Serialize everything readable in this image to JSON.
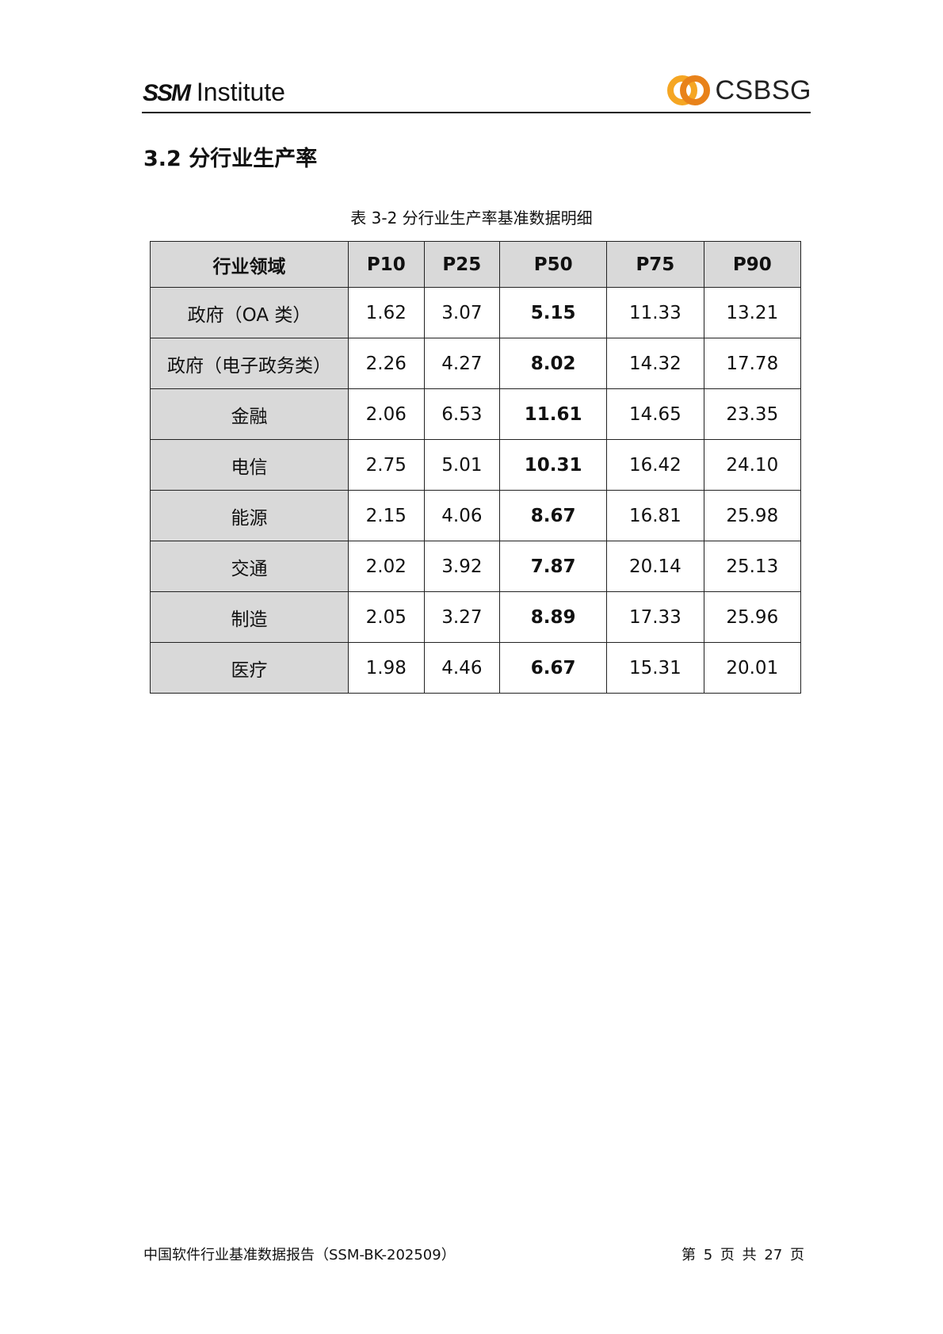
{
  "header": {
    "logo_left_mark": "SSM",
    "logo_left_text": "Institute",
    "logo_right_text": "CSBSG",
    "logo_right_colors": [
      "#f5a623",
      "#e8821a"
    ]
  },
  "section_title": "3.2  分行业生产率",
  "caption": "表 3-2  分行业生产率基准数据明细",
  "table": {
    "columns": [
      "行业领域",
      "P10",
      "P25",
      "P50",
      "P75",
      "P90"
    ],
    "rows": [
      [
        "政府（OA 类）",
        "1.62",
        "3.07",
        "5.15",
        "11.33",
        "13.21"
      ],
      [
        "政府（电子政务类）",
        "2.26",
        "4.27",
        "8.02",
        "14.32",
        "17.78"
      ],
      [
        "金融",
        "2.06",
        "6.53",
        "11.61",
        "14.65",
        "23.35"
      ],
      [
        "电信",
        "2.75",
        "5.01",
        "10.31",
        "16.42",
        "24.10"
      ],
      [
        "能源",
        "2.15",
        "4.06",
        "8.67",
        "16.81",
        "25.98"
      ],
      [
        "交通",
        "2.02",
        "3.92",
        "7.87",
        "20.14",
        "25.13"
      ],
      [
        "制造",
        "2.05",
        "3.27",
        "8.89",
        "17.33",
        "25.96"
      ],
      [
        "医疗",
        "1.98",
        "4.46",
        "6.67",
        "15.31",
        "20.01"
      ]
    ]
  },
  "footer": {
    "left": "中国软件行业基准数据报告（SSM-BK-202509）",
    "right": "第 5 页 共 27 页"
  }
}
